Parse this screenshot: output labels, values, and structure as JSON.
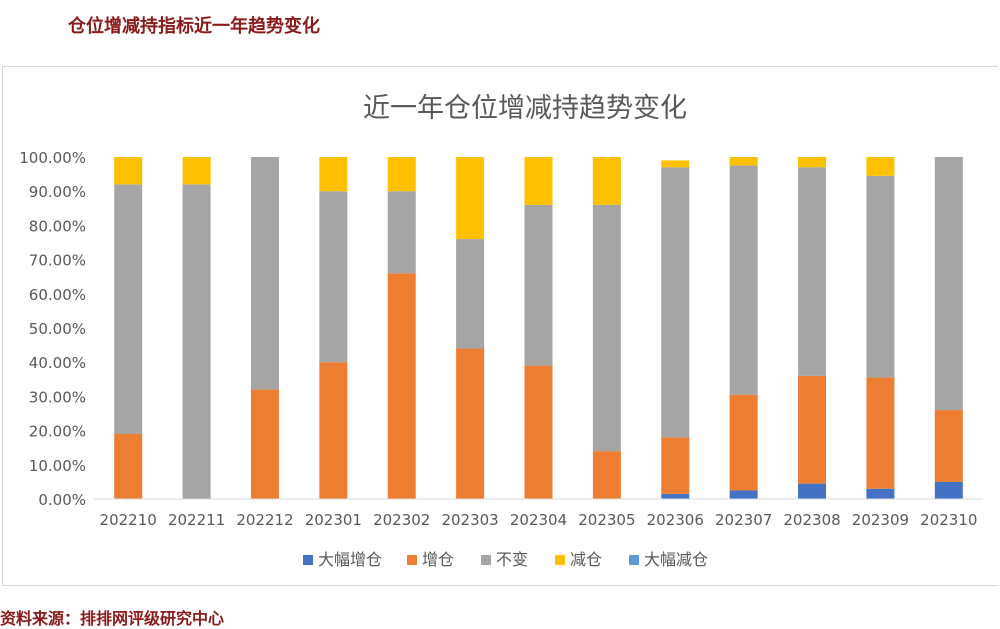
{
  "page": {
    "heading": "仓位增减持指标近一年趋势变化",
    "source": "资料来源：排排网评级研究中心"
  },
  "chart_data": {
    "type": "bar",
    "stacked": true,
    "title": "近一年仓位增减持趋势变化",
    "categories": [
      "202210",
      "202211",
      "202212",
      "202301",
      "202302",
      "202303",
      "202304",
      "202305",
      "202306",
      "202307",
      "202308",
      "202309",
      "202310"
    ],
    "ylim": [
      0,
      100
    ],
    "yticks": [
      "0.00%",
      "10.00%",
      "20.00%",
      "30.00%",
      "40.00%",
      "50.00%",
      "60.00%",
      "70.00%",
      "80.00%",
      "90.00%",
      "100.00%"
    ],
    "grid": false,
    "legend_position": "bottom",
    "series": [
      {
        "name": "大幅增仓",
        "color": "#4472c4",
        "values": [
          0,
          0,
          0,
          0,
          0,
          0,
          0,
          0,
          1.5,
          2.5,
          4.5,
          3,
          5
        ]
      },
      {
        "name": "增仓",
        "color": "#ed7d31",
        "values": [
          19,
          0,
          32,
          40,
          66,
          44,
          39,
          14,
          16.5,
          28,
          31.5,
          32.5,
          21
        ]
      },
      {
        "name": "不变",
        "color": "#a5a5a5",
        "values": [
          73,
          92,
          68,
          50,
          24,
          32,
          47,
          72,
          79,
          67,
          61,
          59,
          74
        ]
      },
      {
        "name": "减仓",
        "color": "#ffc000",
        "values": [
          8,
          8,
          0,
          10,
          10,
          24,
          14,
          14,
          2,
          2.5,
          3,
          5.5,
          0
        ]
      },
      {
        "name": "大幅减仓",
        "color": "#5b9bd5",
        "values": [
          0,
          0,
          0,
          0,
          0,
          0,
          0,
          0,
          0,
          0,
          0,
          0,
          0
        ]
      }
    ]
  }
}
